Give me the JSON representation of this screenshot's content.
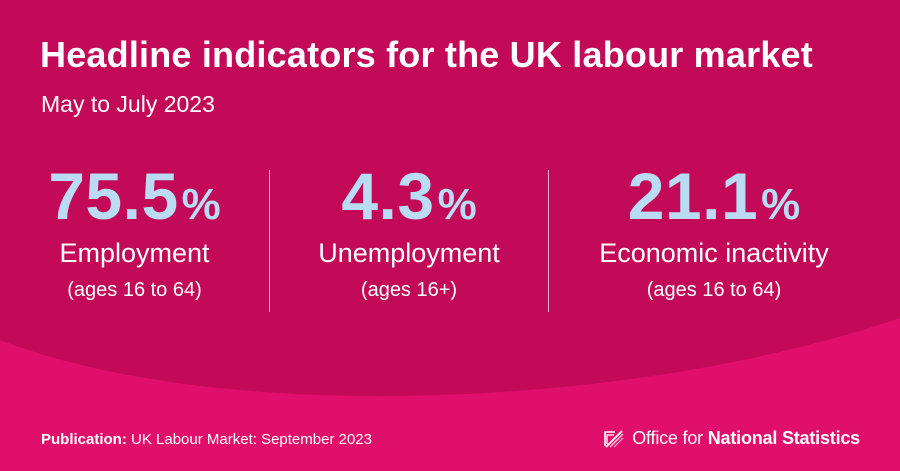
{
  "header": {
    "title": "Headline indicators for the UK labour market",
    "subtitle": "May to July 2023"
  },
  "stats": [
    {
      "value": "75.5",
      "unit": "%",
      "label": "Employment",
      "note": "(ages 16 to 64)"
    },
    {
      "value": "4.3",
      "unit": "%",
      "label": "Unemployment",
      "note": "(ages 16+)"
    },
    {
      "value": "21.1",
      "unit": "%",
      "label": "Economic inactivity",
      "note": "(ages 16 to 64)"
    }
  ],
  "footer": {
    "publication_label": "Publication:",
    "publication_text": "UK Labour Market: September 2023",
    "logo_light": "Office for ",
    "logo_bold": "National Statistics"
  },
  "colors": {
    "background": "#c20a58",
    "lower_band": "#e00f6c",
    "stat_value": "#b9dcf2",
    "text": "#ffffff"
  },
  "icons": {
    "logo": "ons-logo-icon"
  }
}
